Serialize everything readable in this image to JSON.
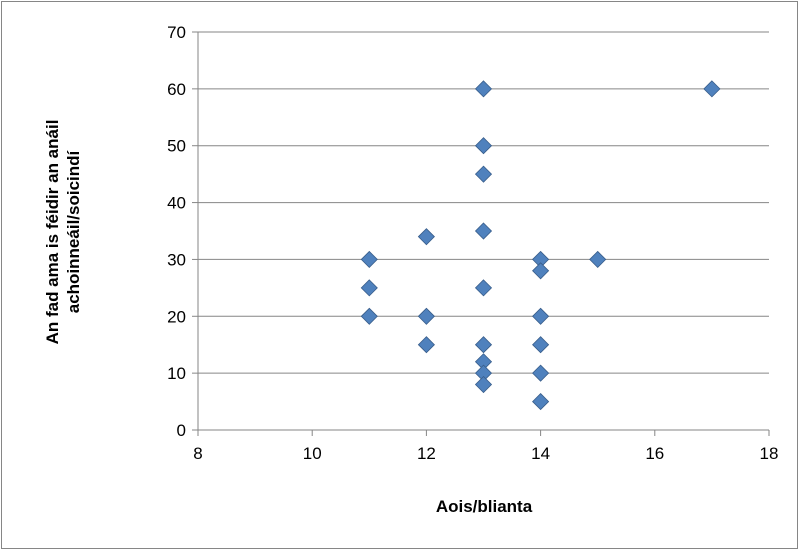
{
  "chart_data": {
    "type": "scatter",
    "title": "",
    "xlabel": "Aois/blianta",
    "ylabel_lines": [
      "An fad ama is féidir an anáil",
      "achoinneáil/soicindí"
    ],
    "xlim": [
      8,
      18
    ],
    "ylim": [
      0,
      70
    ],
    "x_ticks": [
      8,
      10,
      12,
      14,
      16,
      18
    ],
    "y_ticks": [
      0,
      10,
      20,
      30,
      40,
      50,
      60,
      70
    ],
    "grid": "horizontal",
    "legend": "none",
    "marker": "diamond",
    "series": [
      {
        "color": "#4F81BD",
        "points": [
          [
            11,
            30
          ],
          [
            11,
            25
          ],
          [
            11,
            20
          ],
          [
            12,
            34
          ],
          [
            12,
            20
          ],
          [
            12,
            15
          ],
          [
            13,
            60
          ],
          [
            13,
            50
          ],
          [
            13,
            45
          ],
          [
            13,
            35
          ],
          [
            13,
            25
          ],
          [
            13,
            15
          ],
          [
            13,
            12
          ],
          [
            13,
            10
          ],
          [
            13,
            8
          ],
          [
            14,
            30
          ],
          [
            14,
            28
          ],
          [
            14,
            20
          ],
          [
            14,
            15
          ],
          [
            14,
            10
          ],
          [
            14,
            5
          ],
          [
            15,
            30
          ],
          [
            17,
            60
          ]
        ]
      }
    ],
    "colors": {
      "grid": "#868686",
      "axis": "#868686",
      "marker": "#4F81BD",
      "marker_edge": "#385D8A"
    }
  }
}
